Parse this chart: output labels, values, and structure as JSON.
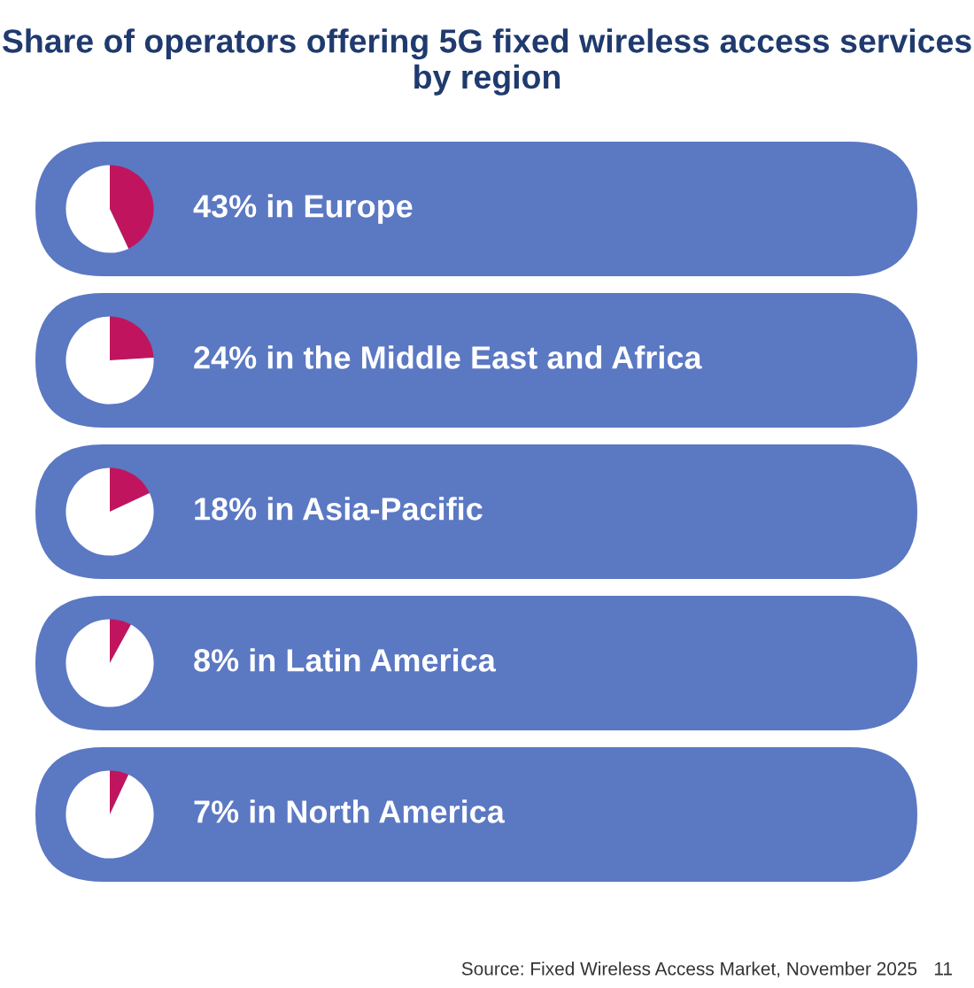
{
  "chart_data": [
    {
      "type": "pie",
      "title": "43% in Europe",
      "categories": [
        null,
        null
      ],
      "values": [
        43,
        57
      ],
      "colors": [
        "#c0155e",
        "#ffffff"
      ],
      "annotations": [
        "Share of operators offering 5G fixed wireless access services by region"
      ]
    },
    {
      "type": "pie",
      "title": "24% in the Middle East and Africa",
      "categories": [
        null,
        null
      ],
      "values": [
        24,
        76
      ],
      "colors": [
        "#c0155e",
        "#ffffff"
      ]
    },
    {
      "type": "pie",
      "title": "18% in Asia-Pacific",
      "categories": [
        null,
        null
      ],
      "values": [
        18,
        82
      ],
      "colors": [
        "#c0155e",
        "#ffffff"
      ]
    },
    {
      "type": "pie",
      "title": "8% in Latin America",
      "categories": [
        null,
        null
      ],
      "values": [
        8,
        92
      ],
      "colors": [
        "#c0155e",
        "#ffffff"
      ]
    },
    {
      "type": "pie",
      "title": "7% in North America",
      "categories": [
        null,
        null
      ],
      "values": [
        7,
        93
      ],
      "colors": [
        "#c0155e",
        "#ffffff"
      ],
      "annotations": [
        "Source: Fixed Wireless Access Market, November 2025",
        "11"
      ]
    }
  ]
}
